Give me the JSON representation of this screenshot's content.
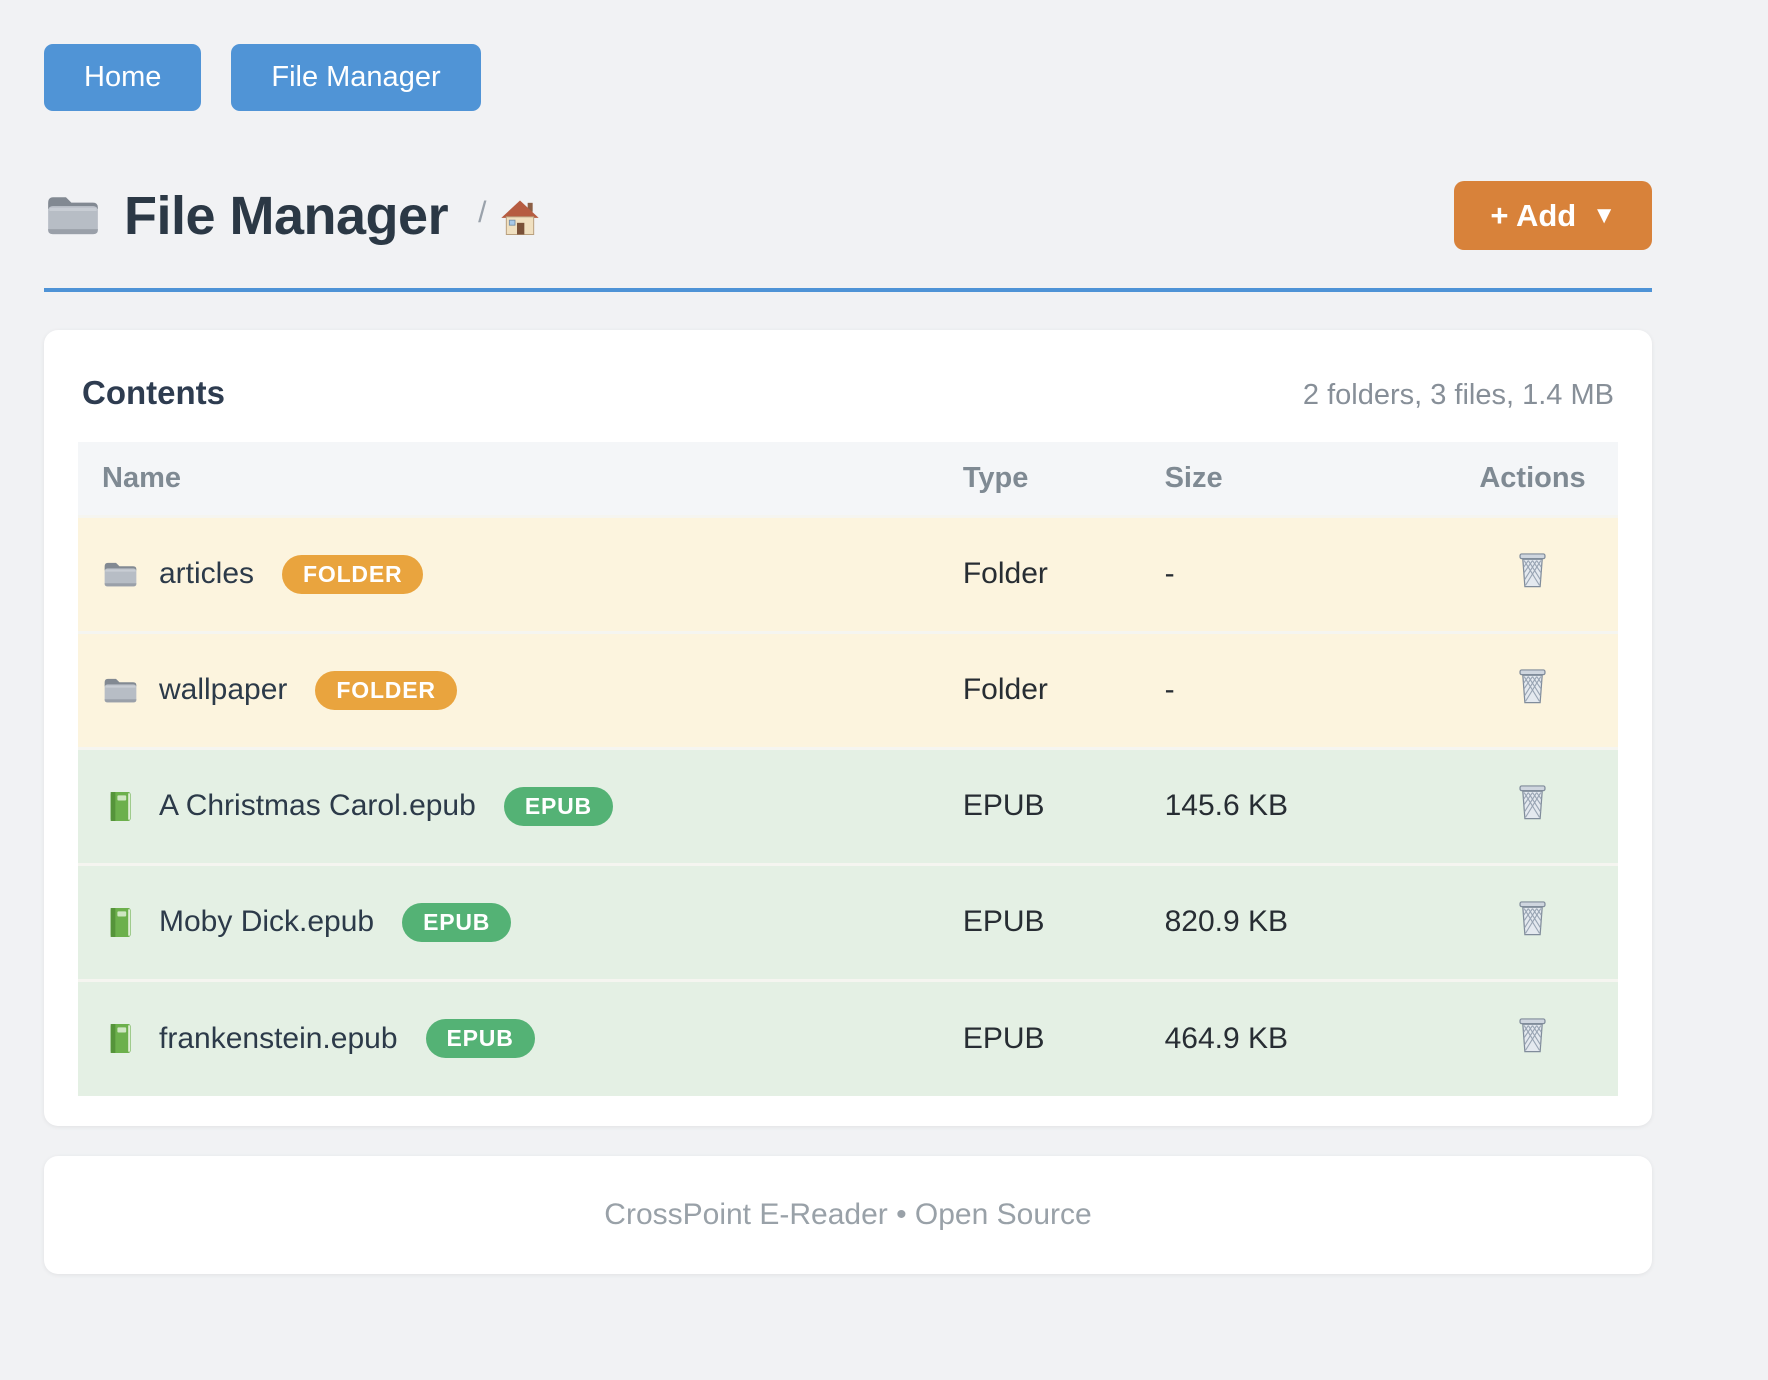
{
  "nav": {
    "items": [
      {
        "label": "Home"
      },
      {
        "label": "File Manager"
      }
    ]
  },
  "header": {
    "title_icon": "folder-icon",
    "title": "File Manager",
    "breadcrumb": {
      "separator": "/",
      "home_icon": "home-icon"
    },
    "add_button": {
      "label": "+ Add",
      "caret": "▼"
    }
  },
  "contents": {
    "title": "Contents",
    "summary": "2 folders, 3 files, 1.4 MB",
    "table": {
      "columns": [
        "Name",
        "Type",
        "Size",
        "Actions"
      ],
      "delete_icon": "trash-icon",
      "rows": [
        {
          "icon": "folder-icon",
          "name": "articles",
          "badge": "FOLDER",
          "type": "Folder",
          "size": "-",
          "kind": "folder"
        },
        {
          "icon": "folder-icon",
          "name": "wallpaper",
          "badge": "FOLDER",
          "type": "Folder",
          "size": "-",
          "kind": "folder"
        },
        {
          "icon": "book-icon",
          "name": "A Christmas Carol.epub",
          "badge": "EPUB",
          "type": "EPUB",
          "size": "145.6 KB",
          "kind": "file"
        },
        {
          "icon": "book-icon",
          "name": "Moby Dick.epub",
          "badge": "EPUB",
          "type": "EPUB",
          "size": "820.9 KB",
          "kind": "file"
        },
        {
          "icon": "book-icon",
          "name": "frankenstein.epub",
          "badge": "EPUB",
          "type": "EPUB",
          "size": "464.9 KB",
          "kind": "file"
        }
      ]
    }
  },
  "footer": {
    "text": "CrossPoint E-Reader • Open Source"
  },
  "colors": {
    "primary_button": "#5094d6",
    "add_button": "#d8823a",
    "divider": "#4e93d6",
    "folder_badge": "#e9a43e",
    "epub_badge": "#54b275",
    "folder_row_bg": "#fcf4de",
    "file_row_bg": "#e4f0e4",
    "page_bg": "#f1f2f4"
  }
}
